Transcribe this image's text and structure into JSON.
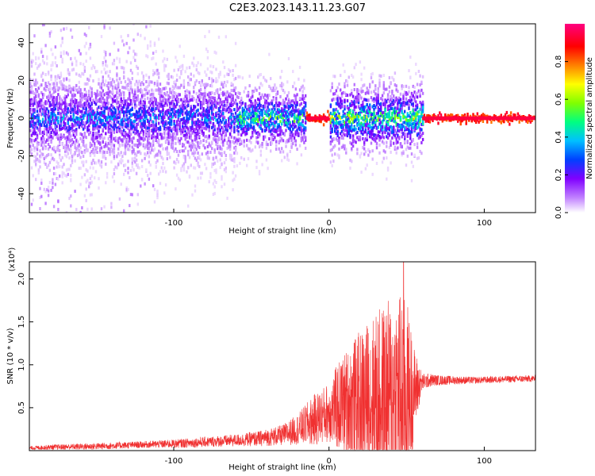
{
  "title": "C2E3.2023.143.11.23.G07",
  "chart_data": [
    {
      "type": "heatmap",
      "xlabel": "Height of straight line (km)",
      "ylabel": "Frequency (Hz)",
      "xlim": [
        -193,
        133
      ],
      "ylim": [
        -50,
        50
      ],
      "xticks": [
        -100,
        0,
        100
      ],
      "xtick_labels": [
        "-100",
        "0",
        "100"
      ],
      "yticks": [
        -40,
        -20,
        0,
        20,
        40
      ],
      "ytick_labels": [
        "-40",
        "-20",
        "0",
        "20",
        "40"
      ],
      "colorbar": {
        "label": "Normalized spectral amplitude",
        "range": [
          0,
          1
        ],
        "ticks": [
          0.0,
          0.2,
          0.4,
          0.6,
          0.8
        ],
        "tick_labels": [
          "0.0",
          "0.2",
          "0.4",
          "0.6",
          "0.8"
        ],
        "colors": [
          "#ffffff",
          "#c080ff",
          "#8000ff",
          "#0040ff",
          "#00c0ff",
          "#00ff80",
          "#80ff00",
          "#ffff00",
          "#ff8000",
          "#ff0000",
          "#ff0080"
        ]
      },
      "bands": [
        {
          "x_start": -193,
          "x_end": -60,
          "freq_spread": 14,
          "peak_amplitude": 0.35
        },
        {
          "x_start": -60,
          "x_end": -15,
          "freq_spread": 9,
          "peak_amplitude": 0.55
        },
        {
          "x_start": -15,
          "x_end": 0,
          "freq_spread": 1.5,
          "peak_amplitude": 0.95
        },
        {
          "x_start": 0,
          "x_end": 60,
          "freq_spread": 10,
          "peak_amplitude": 0.6
        },
        {
          "x_start": 60,
          "x_end": 133,
          "freq_spread": 1,
          "peak_amplitude": 0.95
        }
      ]
    },
    {
      "type": "line",
      "xlabel": "Height of straight line (km)",
      "ylabel": "SNR (10 * v/v)",
      "y_multiplier": "(x10⁴)",
      "xlim": [
        -193,
        133
      ],
      "ylim": [
        0,
        2.2
      ],
      "xticks": [
        -100,
        0,
        100
      ],
      "xtick_labels": [
        "-100",
        "0",
        "100"
      ],
      "yticks": [
        0.5,
        1.0,
        1.5,
        2.0
      ],
      "ytick_labels": [
        "0.5",
        "1.0",
        "1.5",
        "2.0"
      ],
      "color": "#f03030",
      "envelope": {
        "x": [
          -193,
          -180,
          -150,
          -120,
          -100,
          -80,
          -60,
          -45,
          -30,
          -20,
          -10,
          0,
          5,
          10,
          20,
          30,
          40,
          45,
          50,
          55,
          60,
          65,
          70,
          80,
          95,
          110,
          133
        ],
        "mean": [
          0.03,
          0.04,
          0.05,
          0.07,
          0.08,
          0.1,
          0.12,
          0.14,
          0.18,
          0.25,
          0.35,
          0.45,
          0.5,
          0.55,
          0.6,
          0.62,
          0.6,
          0.62,
          0.6,
          0.7,
          0.8,
          0.82,
          0.82,
          0.82,
          0.82,
          0.83,
          0.84
        ],
        "spread": [
          0.02,
          0.03,
          0.04,
          0.04,
          0.05,
          0.06,
          0.07,
          0.09,
          0.12,
          0.18,
          0.3,
          0.35,
          0.5,
          0.6,
          0.8,
          1.0,
          1.2,
          1.3,
          1.2,
          0.5,
          0.1,
          0.08,
          0.06,
          0.05,
          0.04,
          0.04,
          0.04
        ]
      },
      "peak": {
        "x": 48,
        "y": 2.2
      }
    }
  ]
}
